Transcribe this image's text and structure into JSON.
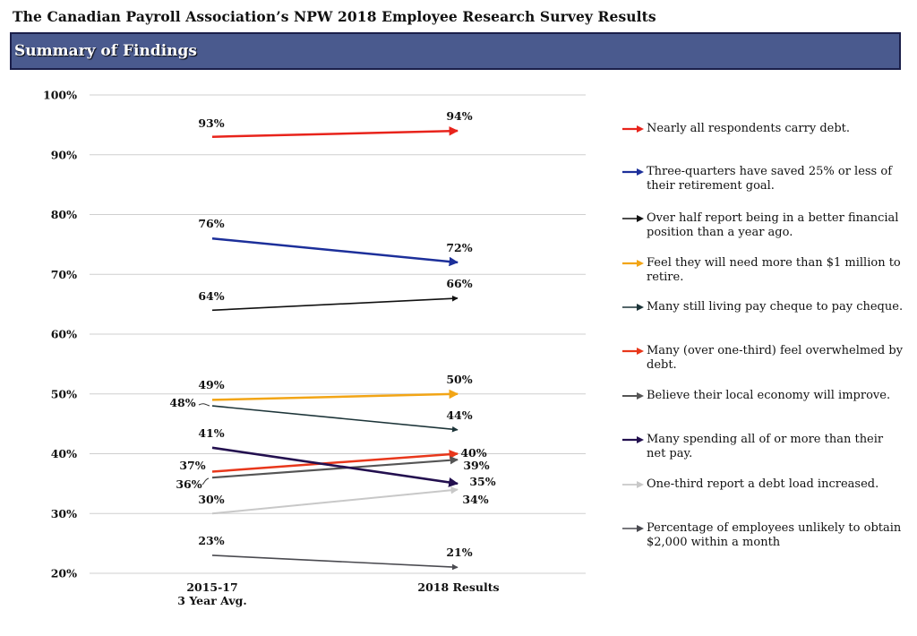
{
  "header": {
    "title": "The Canadian Payroll Association’s NPW 2018 Employee Research Survey Results",
    "banner": "Summary of Findings"
  },
  "chart_data": {
    "type": "line",
    "title": "Summary of Findings",
    "categories": [
      "2015-17\n3 Year Avg.",
      "2018 Results"
    ],
    "category_lines": [
      [
        "2015-17",
        "3 Year Avg."
      ],
      [
        "2018 Results"
      ]
    ],
    "ylim": [
      20,
      100
    ],
    "yticks": [
      20,
      30,
      40,
      50,
      60,
      70,
      80,
      90,
      100
    ],
    "ytick_labels": [
      "20%",
      "30%",
      "40%",
      "50%",
      "60%",
      "70%",
      "80%",
      "90%",
      "100%"
    ],
    "grid": true,
    "legend_position": "right",
    "series": [
      {
        "name": "Nearly all respondents carry debt.",
        "values": [
          93,
          94
        ],
        "labels": [
          "93%",
          "94%"
        ],
        "color": "#e8231b",
        "width": 2.5
      },
      {
        "name": "Three-quarters have saved 25% or less of their retirement goal.",
        "values": [
          76,
          72
        ],
        "labels": [
          "76%",
          "72%"
        ],
        "color": "#1c2f9a",
        "width": 2.5
      },
      {
        "name": "Over half report being in a better financial position than a year ago.",
        "values": [
          64,
          66
        ],
        "labels": [
          "64%",
          "66%"
        ],
        "color": "#111111",
        "width": 1.6
      },
      {
        "name": "Feel they will need more than $1 million to retire.",
        "values": [
          49,
          50
        ],
        "labels": [
          "49%",
          "50%"
        ],
        "color": "#f2a516",
        "width": 2.5
      },
      {
        "name": "Many still living pay cheque to pay cheque.",
        "values": [
          48,
          44
        ],
        "labels": [
          "48%",
          "44%"
        ],
        "color": "#1c3438",
        "width": 1.6
      },
      {
        "name": "Many (over one-third) feel overwhelmed by debt.",
        "values": [
          37,
          40
        ],
        "labels": [
          "37%",
          "40%"
        ],
        "color": "#e8371b",
        "width": 2.5
      },
      {
        "name": "Believe their local economy will improve.",
        "values": [
          36,
          39
        ],
        "labels": [
          "36%",
          "39%"
        ],
        "color": "#555555",
        "width": 2.2
      },
      {
        "name": "Many spending all of or more than their net pay.",
        "values": [
          41,
          35
        ],
        "labels": [
          "41%",
          "35%"
        ],
        "color": "#23104f",
        "width": 2.6
      },
      {
        "name": "One-third report a debt load increased.",
        "values": [
          30,
          34
        ],
        "labels": [
          "30%",
          "34%"
        ],
        "color": "#c8c8c8",
        "width": 2.0
      },
      {
        "name": "Percentage of employees unlikely to obtain $2,000 within a month",
        "values": [
          23,
          21
        ],
        "labels": [
          "23%",
          "21%"
        ],
        "color": "#4a4a50",
        "width": 1.6
      }
    ]
  }
}
